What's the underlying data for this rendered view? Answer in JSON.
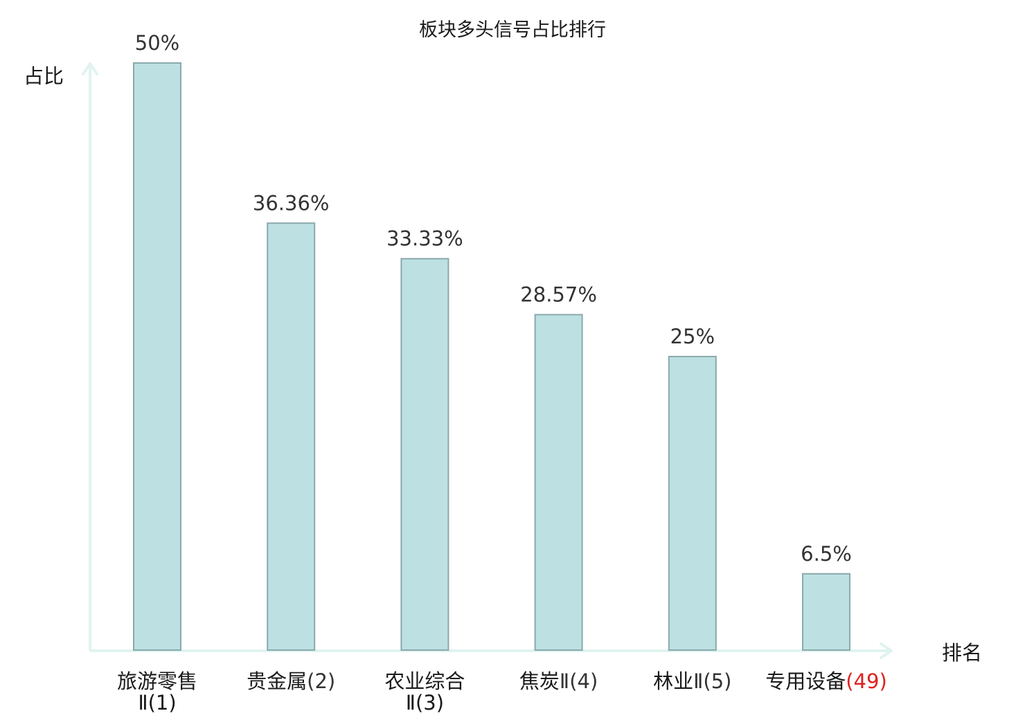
{
  "chart_data": {
    "type": "bar",
    "title": "板块多头信号占比排行",
    "ylabel": "占比",
    "xlabel": "排名",
    "categories": [
      {
        "name": "旅游零售",
        "suffix": "Ⅱ(1)"
      },
      {
        "name": "贵金属",
        "suffix": "(2)"
      },
      {
        "name": "农业综合",
        "suffix": "Ⅱ(3)"
      },
      {
        "name": "焦炭",
        "suffix": "Ⅱ(4)"
      },
      {
        "name": "林业",
        "suffix": "Ⅱ(5)"
      },
      {
        "name": "专用设备",
        "suffix": "(49)"
      }
    ],
    "values": [
      50,
      36.36,
      33.33,
      28.57,
      25,
      6.5
    ],
    "value_labels": [
      "50%",
      "36.36%",
      "33.33%",
      "28.57%",
      "25%",
      "6.5%"
    ],
    "ylim": [
      0,
      50
    ],
    "highlight_index": 5,
    "grid": false,
    "legend": "none",
    "colors": {
      "bar_fill": "#bde0e2",
      "bar_stroke": "#8aa9ab",
      "axis": "#e0f3f1",
      "highlight_text": "#e0201e",
      "text": "#1a1a1a",
      "value_text": "#333333"
    }
  }
}
